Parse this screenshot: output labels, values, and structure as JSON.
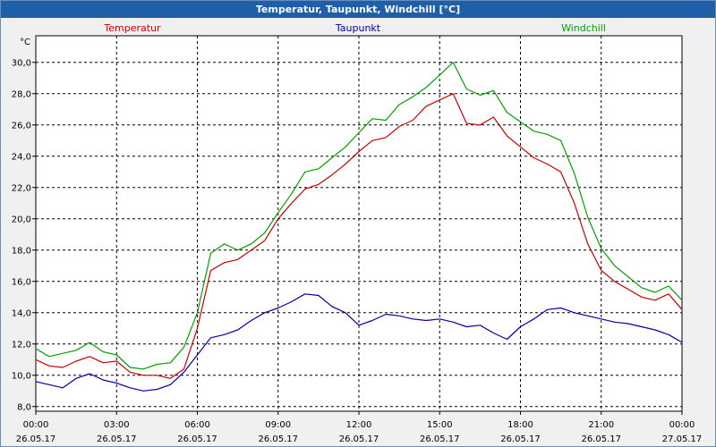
{
  "window": {
    "title": "Temperatur, Taupunkt, Windchill [°C]"
  },
  "chart_data": {
    "type": "line",
    "title": "Temperatur, Taupunkt, Windchill [°C]",
    "ylabel": "°C",
    "xlabel": "",
    "grid": true,
    "legend_placement": "top",
    "ylim": [
      7.7,
      31.7
    ],
    "xlim": [
      0,
      24
    ],
    "y_ticks": [
      "8,0",
      "10,0",
      "12,0",
      "14,0",
      "16,0",
      "18,0",
      "20,0",
      "22,0",
      "24,0",
      "26,0",
      "28,0",
      "30,0"
    ],
    "x_tick_times": [
      "00:00",
      "03:00",
      "06:00",
      "09:00",
      "12:00",
      "15:00",
      "18:00",
      "21:00",
      "00:00"
    ],
    "x_tick_dates": [
      "26.05.17",
      "26.05.17",
      "26.05.17",
      "26.05.17",
      "26.05.17",
      "26.05.17",
      "26.05.17",
      "26.05.17",
      "27.05.17"
    ],
    "series": [
      {
        "name": "Temperatur",
        "color": "#cc0000",
        "x": [
          0,
          0.5,
          1,
          1.5,
          2,
          2.5,
          3,
          3.5,
          4,
          4.5,
          5,
          5.5,
          6,
          6.5,
          7,
          7.5,
          8,
          8.5,
          9,
          9.5,
          10,
          10.5,
          11,
          11.5,
          12,
          12.5,
          13,
          13.5,
          14,
          14.5,
          15,
          15.5,
          16,
          16.5,
          17,
          17.5,
          18,
          18.5,
          19,
          19.5,
          20,
          20.5,
          21,
          21.5,
          22,
          22.5,
          23,
          23.5,
          24
        ],
        "values": [
          11.0,
          10.6,
          10.5,
          10.9,
          11.2,
          10.8,
          10.9,
          10.2,
          10.0,
          10.0,
          9.8,
          10.4,
          13.0,
          16.7,
          17.2,
          17.4,
          18.0,
          18.6,
          20.0,
          21.0,
          21.9,
          22.2,
          22.8,
          23.5,
          24.3,
          25.0,
          25.2,
          25.9,
          26.3,
          27.2,
          27.6,
          28.0,
          26.1,
          26.0,
          26.5,
          25.3,
          24.6,
          23.9,
          23.5,
          23.0,
          21.0,
          18.4,
          16.7,
          16.0,
          15.5,
          15.0,
          14.8,
          15.2,
          14.2
        ]
      },
      {
        "name": "Taupunkt",
        "color": "#0000aa",
        "x": [
          0,
          0.5,
          1,
          1.5,
          2,
          2.5,
          3,
          3.5,
          4,
          4.5,
          5,
          5.5,
          6,
          6.5,
          7,
          7.5,
          8,
          8.5,
          9,
          9.5,
          10,
          10.5,
          11,
          11.5,
          12,
          12.5,
          13,
          13.5,
          14,
          14.5,
          15,
          15.5,
          16,
          16.5,
          17,
          17.5,
          18,
          18.5,
          19,
          19.5,
          20,
          20.5,
          21,
          21.5,
          22,
          22.5,
          23,
          23.5,
          24
        ],
        "values": [
          9.6,
          9.4,
          9.2,
          9.8,
          10.1,
          9.7,
          9.5,
          9.2,
          9.0,
          9.1,
          9.4,
          10.2,
          11.3,
          12.4,
          12.6,
          12.9,
          13.5,
          14.0,
          14.3,
          14.7,
          15.2,
          15.1,
          14.4,
          14.0,
          13.2,
          13.5,
          13.9,
          13.8,
          13.6,
          13.5,
          13.6,
          13.4,
          13.1,
          13.2,
          12.7,
          12.3,
          13.1,
          13.6,
          14.2,
          14.3,
          14.0,
          13.8,
          13.6,
          13.4,
          13.3,
          13.1,
          12.9,
          12.6,
          12.1
        ]
      },
      {
        "name": "Windchill",
        "color": "#00a000",
        "x": [
          0,
          0.5,
          1,
          1.5,
          2,
          2.5,
          3,
          3.5,
          4,
          4.5,
          5,
          5.5,
          6,
          6.5,
          7,
          7.5,
          8,
          8.5,
          9,
          9.5,
          10,
          10.5,
          11,
          11.5,
          12,
          12.5,
          13,
          13.5,
          14,
          14.5,
          15,
          15.5,
          16,
          16.5,
          17,
          17.5,
          18,
          18.5,
          19,
          19.5,
          20,
          20.5,
          21,
          21.5,
          22,
          22.5,
          23,
          23.5,
          24
        ],
        "values": [
          11.7,
          11.2,
          11.4,
          11.6,
          12.1,
          11.5,
          11.3,
          10.5,
          10.4,
          10.7,
          10.8,
          11.8,
          14.0,
          17.8,
          18.4,
          18.0,
          18.4,
          19.1,
          20.4,
          21.6,
          23.0,
          23.2,
          23.9,
          24.6,
          25.5,
          26.4,
          26.3,
          27.3,
          27.8,
          28.4,
          29.2,
          30.0,
          28.3,
          27.9,
          28.2,
          26.8,
          26.2,
          25.6,
          25.4,
          25.0,
          22.9,
          20.1,
          18.1,
          17.0,
          16.3,
          15.6,
          15.3,
          15.7,
          14.8
        ]
      }
    ]
  }
}
